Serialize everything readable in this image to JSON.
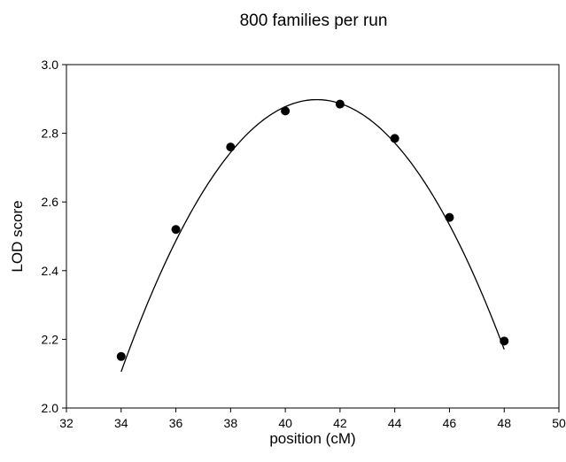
{
  "chart_data": {
    "type": "scatter",
    "title": "800 families per run",
    "xlabel": "position (cM)",
    "ylabel": "LOD score",
    "xlim": [
      32,
      50
    ],
    "ylim": [
      2.0,
      3.0
    ],
    "xticks": [
      32,
      34,
      36,
      38,
      40,
      42,
      44,
      46,
      48,
      50
    ],
    "yticks": [
      2.0,
      2.2,
      2.4,
      2.6,
      2.8,
      3.0
    ],
    "xtick_labels": [
      "32",
      "34",
      "36",
      "38",
      "40",
      "42",
      "44",
      "46",
      "48",
      "50"
    ],
    "ytick_labels": [
      "2.0",
      "2.2",
      "2.4",
      "2.6",
      "2.8",
      "3.0"
    ],
    "grid": false,
    "series": [
      {
        "x": [
          34,
          36,
          38,
          40,
          42,
          44,
          46,
          48
        ],
        "y": [
          2.15,
          2.52,
          2.76,
          2.865,
          2.885,
          2.785,
          2.555,
          2.195
        ],
        "marker": "filled-circle",
        "color": "#000000"
      }
    ],
    "fit_curve": {
      "type": "quadratic",
      "peak_x": 41.15,
      "peak_y": 2.898,
      "curvature": -0.0155,
      "x_range": [
        34,
        48
      ],
      "color": "#000000"
    }
  }
}
